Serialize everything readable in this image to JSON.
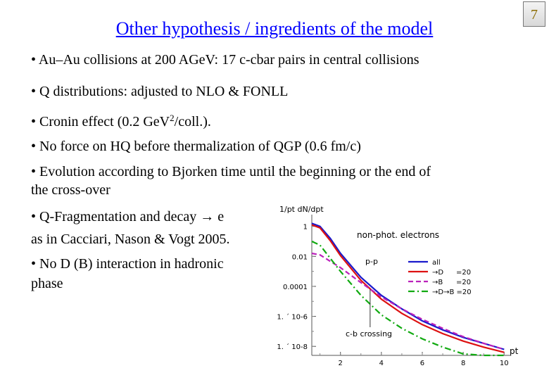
{
  "slide": {
    "title": "Other hypothesis / ingredients of the model",
    "page_number": "7"
  },
  "bullets": [
    "• Au–Au collisions at 200 AGeV: 17 c-cbar pairs in central collisions",
    "• Q distributions: adjusted to NLO & FONLL",
    {
      "pre": "• Cronin effect (0.2 GeV",
      "sup": "2",
      "post": "/coll.)."
    },
    "• No force on HQ before thermalization of QGP (0.6 fm/c)",
    "• Evolution according to Bjorken time until the beginning or the end of",
    "the cross-over",
    "• Q-Fragmentation and decay → e",
    "as in Cacciari, Nason & Vogt 2005.",
    "• No D (B) interaction in hadronic",
    "phase"
  ],
  "chart_data": {
    "type": "line",
    "title": "non-phot. electrons",
    "ylabel": "1/pt dN/dpt",
    "xlabel": "pt",
    "yscale": "log",
    "y_tick_labels": [
      "1",
      "0.01",
      "0.0001",
      "1. ´ 10-6",
      "1. ´ 10-8"
    ],
    "x_tick_labels": [
      "2",
      "4",
      "6",
      "8",
      "10"
    ],
    "xlim": [
      0.6,
      10.3
    ],
    "ylim_log10": [
      -8.6,
      0.5
    ],
    "annotations": [
      "c-b crossing",
      "p-p"
    ],
    "legend_labels": [
      "all",
      "→D",
      "→B",
      "→D→B =20"
    ],
    "legend_extra": "=20",
    "series": [
      {
        "style": "solid",
        "color": "#1a1acc",
        "x": [
          0.6,
          1,
          1.5,
          2,
          3,
          4,
          5,
          6,
          7,
          8,
          9,
          10
        ],
        "log10_y": [
          0.2,
          0.0,
          -0.8,
          -1.8,
          -3.4,
          -4.6,
          -5.5,
          -6.3,
          -6.9,
          -7.4,
          -7.8,
          -8.2
        ]
      },
      {
        "style": "solid",
        "color": "#dd1111",
        "x": [
          0.6,
          1,
          1.5,
          2,
          3,
          4,
          5,
          6,
          7,
          8,
          9,
          10
        ],
        "log10_y": [
          0.1,
          -0.1,
          -0.95,
          -1.95,
          -3.6,
          -4.85,
          -5.8,
          -6.55,
          -7.15,
          -7.65,
          -8.05,
          -8.4
        ]
      },
      {
        "style": "dashed",
        "color": "#bb22bb",
        "x": [
          0.6,
          1,
          2,
          3,
          4,
          5,
          6,
          7,
          8,
          9,
          10
        ],
        "log10_y": [
          -1.8,
          -1.9,
          -2.75,
          -3.75,
          -4.7,
          -5.5,
          -6.2,
          -6.8,
          -7.35,
          -7.8,
          -8.2
        ]
      },
      {
        "style": "dashdot",
        "color": "#11aa11",
        "x": [
          0.6,
          1,
          2,
          3,
          4,
          5,
          6,
          7,
          8,
          9,
          10
        ],
        "log10_y": [
          -1.0,
          -1.25,
          -3.0,
          -4.6,
          -5.9,
          -6.8,
          -7.5,
          -8.05,
          -8.5,
          -8.9,
          -9.2
        ]
      }
    ]
  }
}
